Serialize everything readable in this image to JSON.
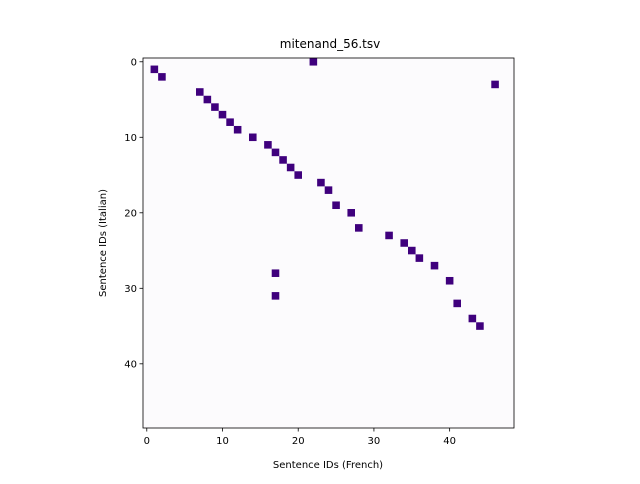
{
  "chart_data": {
    "type": "heatmap",
    "title": "mitenand_56.tsv",
    "xlabel": "Sentence IDs (French)",
    "ylabel": "Sentence IDs (Italian)",
    "x_ticks": [
      0,
      10,
      20,
      30,
      40
    ],
    "y_ticks": [
      0,
      10,
      20,
      30,
      40
    ],
    "xlim": [
      -0.5,
      48.5
    ],
    "ylim": [
      48.5,
      -0.5
    ],
    "background_color": "#fcfbfd",
    "cell_color": "#3f007d",
    "cells": [
      {
        "x": 22,
        "y": 0
      },
      {
        "x": 1,
        "y": 1
      },
      {
        "x": 2,
        "y": 2
      },
      {
        "x": 46,
        "y": 3
      },
      {
        "x": 7,
        "y": 4
      },
      {
        "x": 8,
        "y": 5
      },
      {
        "x": 9,
        "y": 6
      },
      {
        "x": 10,
        "y": 7
      },
      {
        "x": 11,
        "y": 8
      },
      {
        "x": 12,
        "y": 9
      },
      {
        "x": 14,
        "y": 10
      },
      {
        "x": 16,
        "y": 11
      },
      {
        "x": 17,
        "y": 12
      },
      {
        "x": 18,
        "y": 13
      },
      {
        "x": 19,
        "y": 14
      },
      {
        "x": 20,
        "y": 15
      },
      {
        "x": 23,
        "y": 16
      },
      {
        "x": 24,
        "y": 17
      },
      {
        "x": 25,
        "y": 19
      },
      {
        "x": 27,
        "y": 20
      },
      {
        "x": 28,
        "y": 22
      },
      {
        "x": 32,
        "y": 23
      },
      {
        "x": 34,
        "y": 24
      },
      {
        "x": 35,
        "y": 25
      },
      {
        "x": 36,
        "y": 26
      },
      {
        "x": 38,
        "y": 27
      },
      {
        "x": 17,
        "y": 28
      },
      {
        "x": 40,
        "y": 29
      },
      {
        "x": 17,
        "y": 31
      },
      {
        "x": 41,
        "y": 32
      },
      {
        "x": 43,
        "y": 34
      },
      {
        "x": 44,
        "y": 35
      }
    ]
  }
}
